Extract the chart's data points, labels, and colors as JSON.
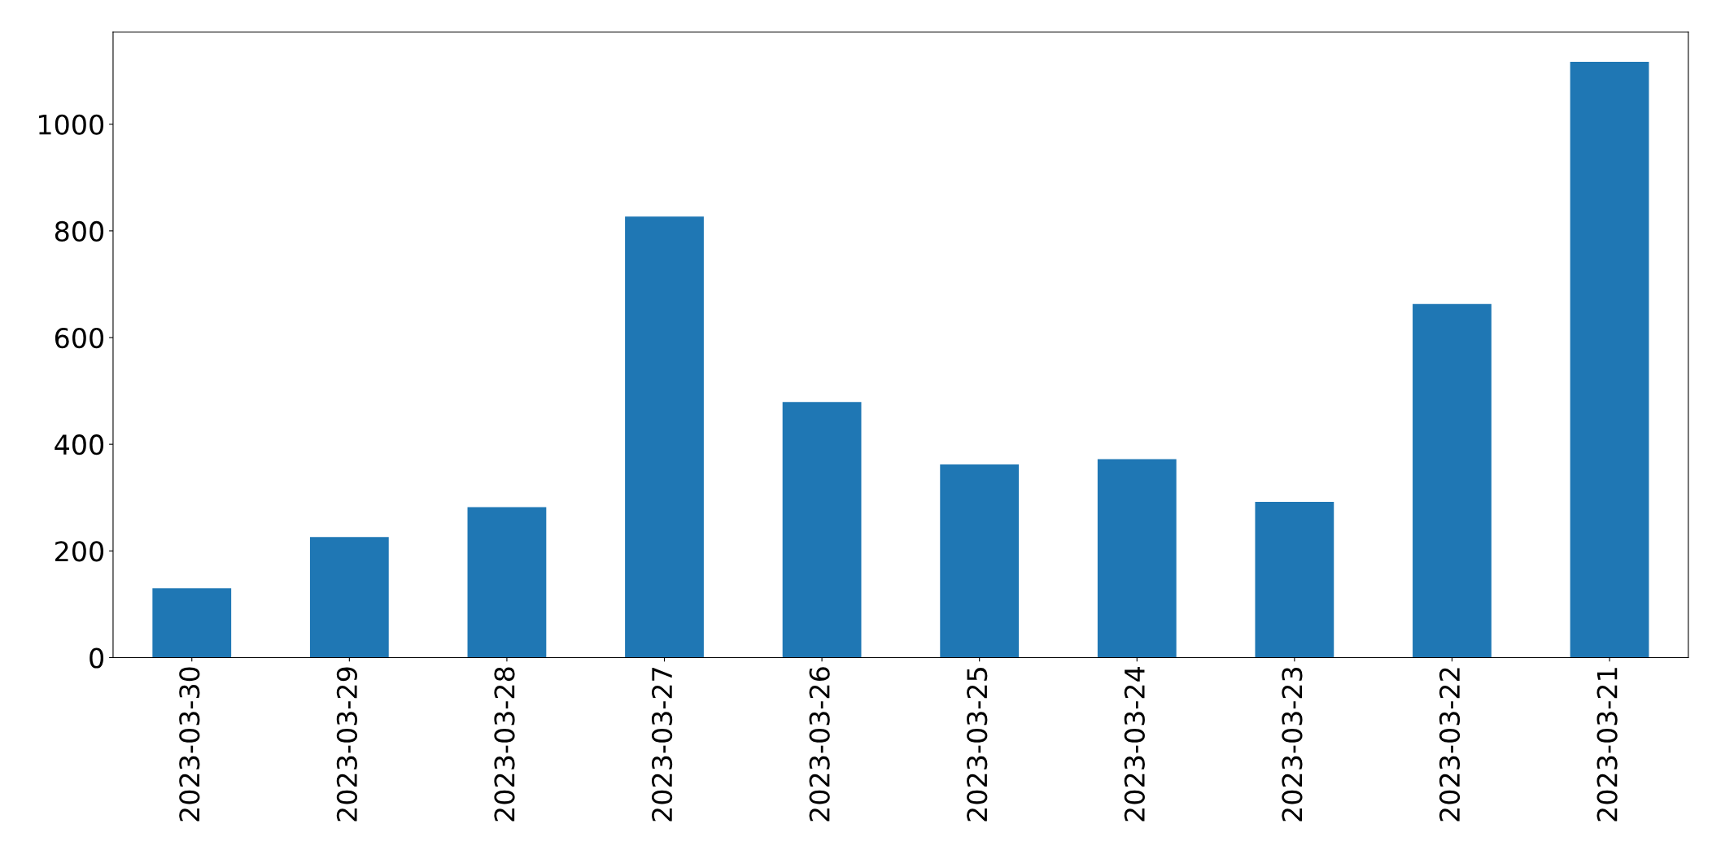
{
  "chart_data": {
    "type": "bar",
    "categories": [
      "2023-03-30",
      "2023-03-29",
      "2023-03-28",
      "2023-03-27",
      "2023-03-26",
      "2023-03-25",
      "2023-03-24",
      "2023-03-23",
      "2023-03-22",
      "2023-03-21"
    ],
    "values": [
      130,
      226,
      282,
      827,
      479,
      362,
      372,
      292,
      663,
      1117
    ],
    "color": "#1f77b4",
    "ylim": [
      0,
      1173
    ],
    "yticks": [
      0,
      200,
      400,
      600,
      800,
      1000
    ],
    "grid": false,
    "legend": false
  }
}
